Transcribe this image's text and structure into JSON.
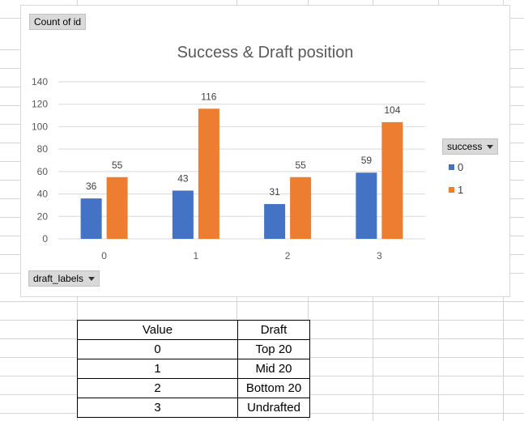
{
  "pivot": {
    "value_field_label": "Count of id",
    "axis_field_label": "draft_labels",
    "legend_field_label": "success"
  },
  "chart_data": {
    "type": "bar",
    "title": "Success & Draft position",
    "categories": [
      "0",
      "1",
      "2",
      "3"
    ],
    "series": [
      {
        "name": "0",
        "color": "#4472c4",
        "values": [
          36,
          43,
          31,
          59
        ]
      },
      {
        "name": "1",
        "color": "#ed7d31",
        "values": [
          55,
          116,
          55,
          104
        ]
      }
    ],
    "ylim": [
      0,
      140
    ],
    "yticks": [
      0,
      20,
      40,
      60,
      80,
      100,
      120,
      140
    ],
    "grid": true,
    "legend_position": "right"
  },
  "lookup_table": {
    "headers": [
      "Value",
      "Draft"
    ],
    "rows": [
      [
        "0",
        "Top 20"
      ],
      [
        "1",
        "Mid 20"
      ],
      [
        "2",
        "Bottom 20"
      ],
      [
        "3",
        "Undrafted"
      ]
    ]
  }
}
